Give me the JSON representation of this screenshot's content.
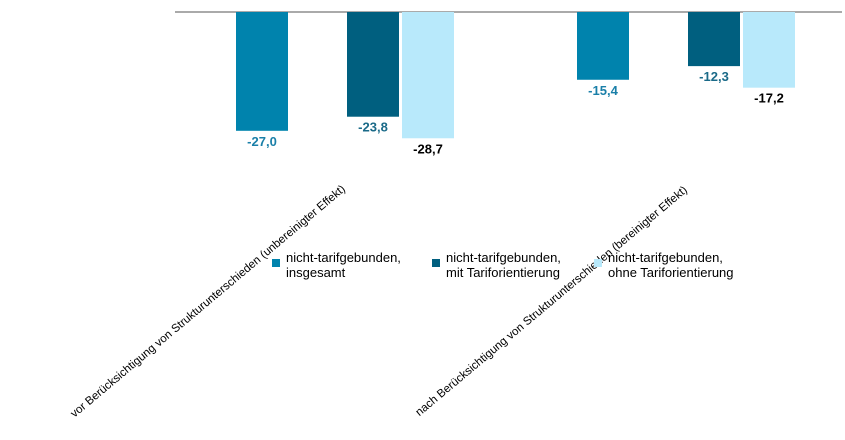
{
  "chart_data": {
    "type": "bar",
    "categories": [
      "vor Berücksichtigung von Strukturunterschieden (unbereinigter Effekt)",
      "nach Berücksichtigung von Strukturunterschieden (bereinigter Effekt)"
    ],
    "series": [
      {
        "name": "nicht-tarifgebunden,\ninsgesamt",
        "values": [
          -27.0,
          -15.4
        ],
        "labels": [
          "-27,0",
          "-15,4"
        ],
        "color": "#0083ad",
        "label_color": "#1a7fa8"
      },
      {
        "name": "nicht-tarifgebunden,\nmit Tariforientierung",
        "values": [
          -23.8,
          -12.3
        ],
        "labels": [
          "-23,8",
          "-12,3"
        ],
        "color": "#005f7f",
        "label_color": "#1a6a88"
      },
      {
        "name": "nicht-tarifgebunden,\nohne Tariforientierung",
        "values": [
          -28.7,
          -17.2
        ],
        "labels": [
          "-28,7",
          "-17,2"
        ],
        "color": "#b8e9fb",
        "label_color": "#000000"
      }
    ],
    "ylim": [
      -30,
      0
    ],
    "grid": false,
    "legend_position": "bottom-right"
  }
}
